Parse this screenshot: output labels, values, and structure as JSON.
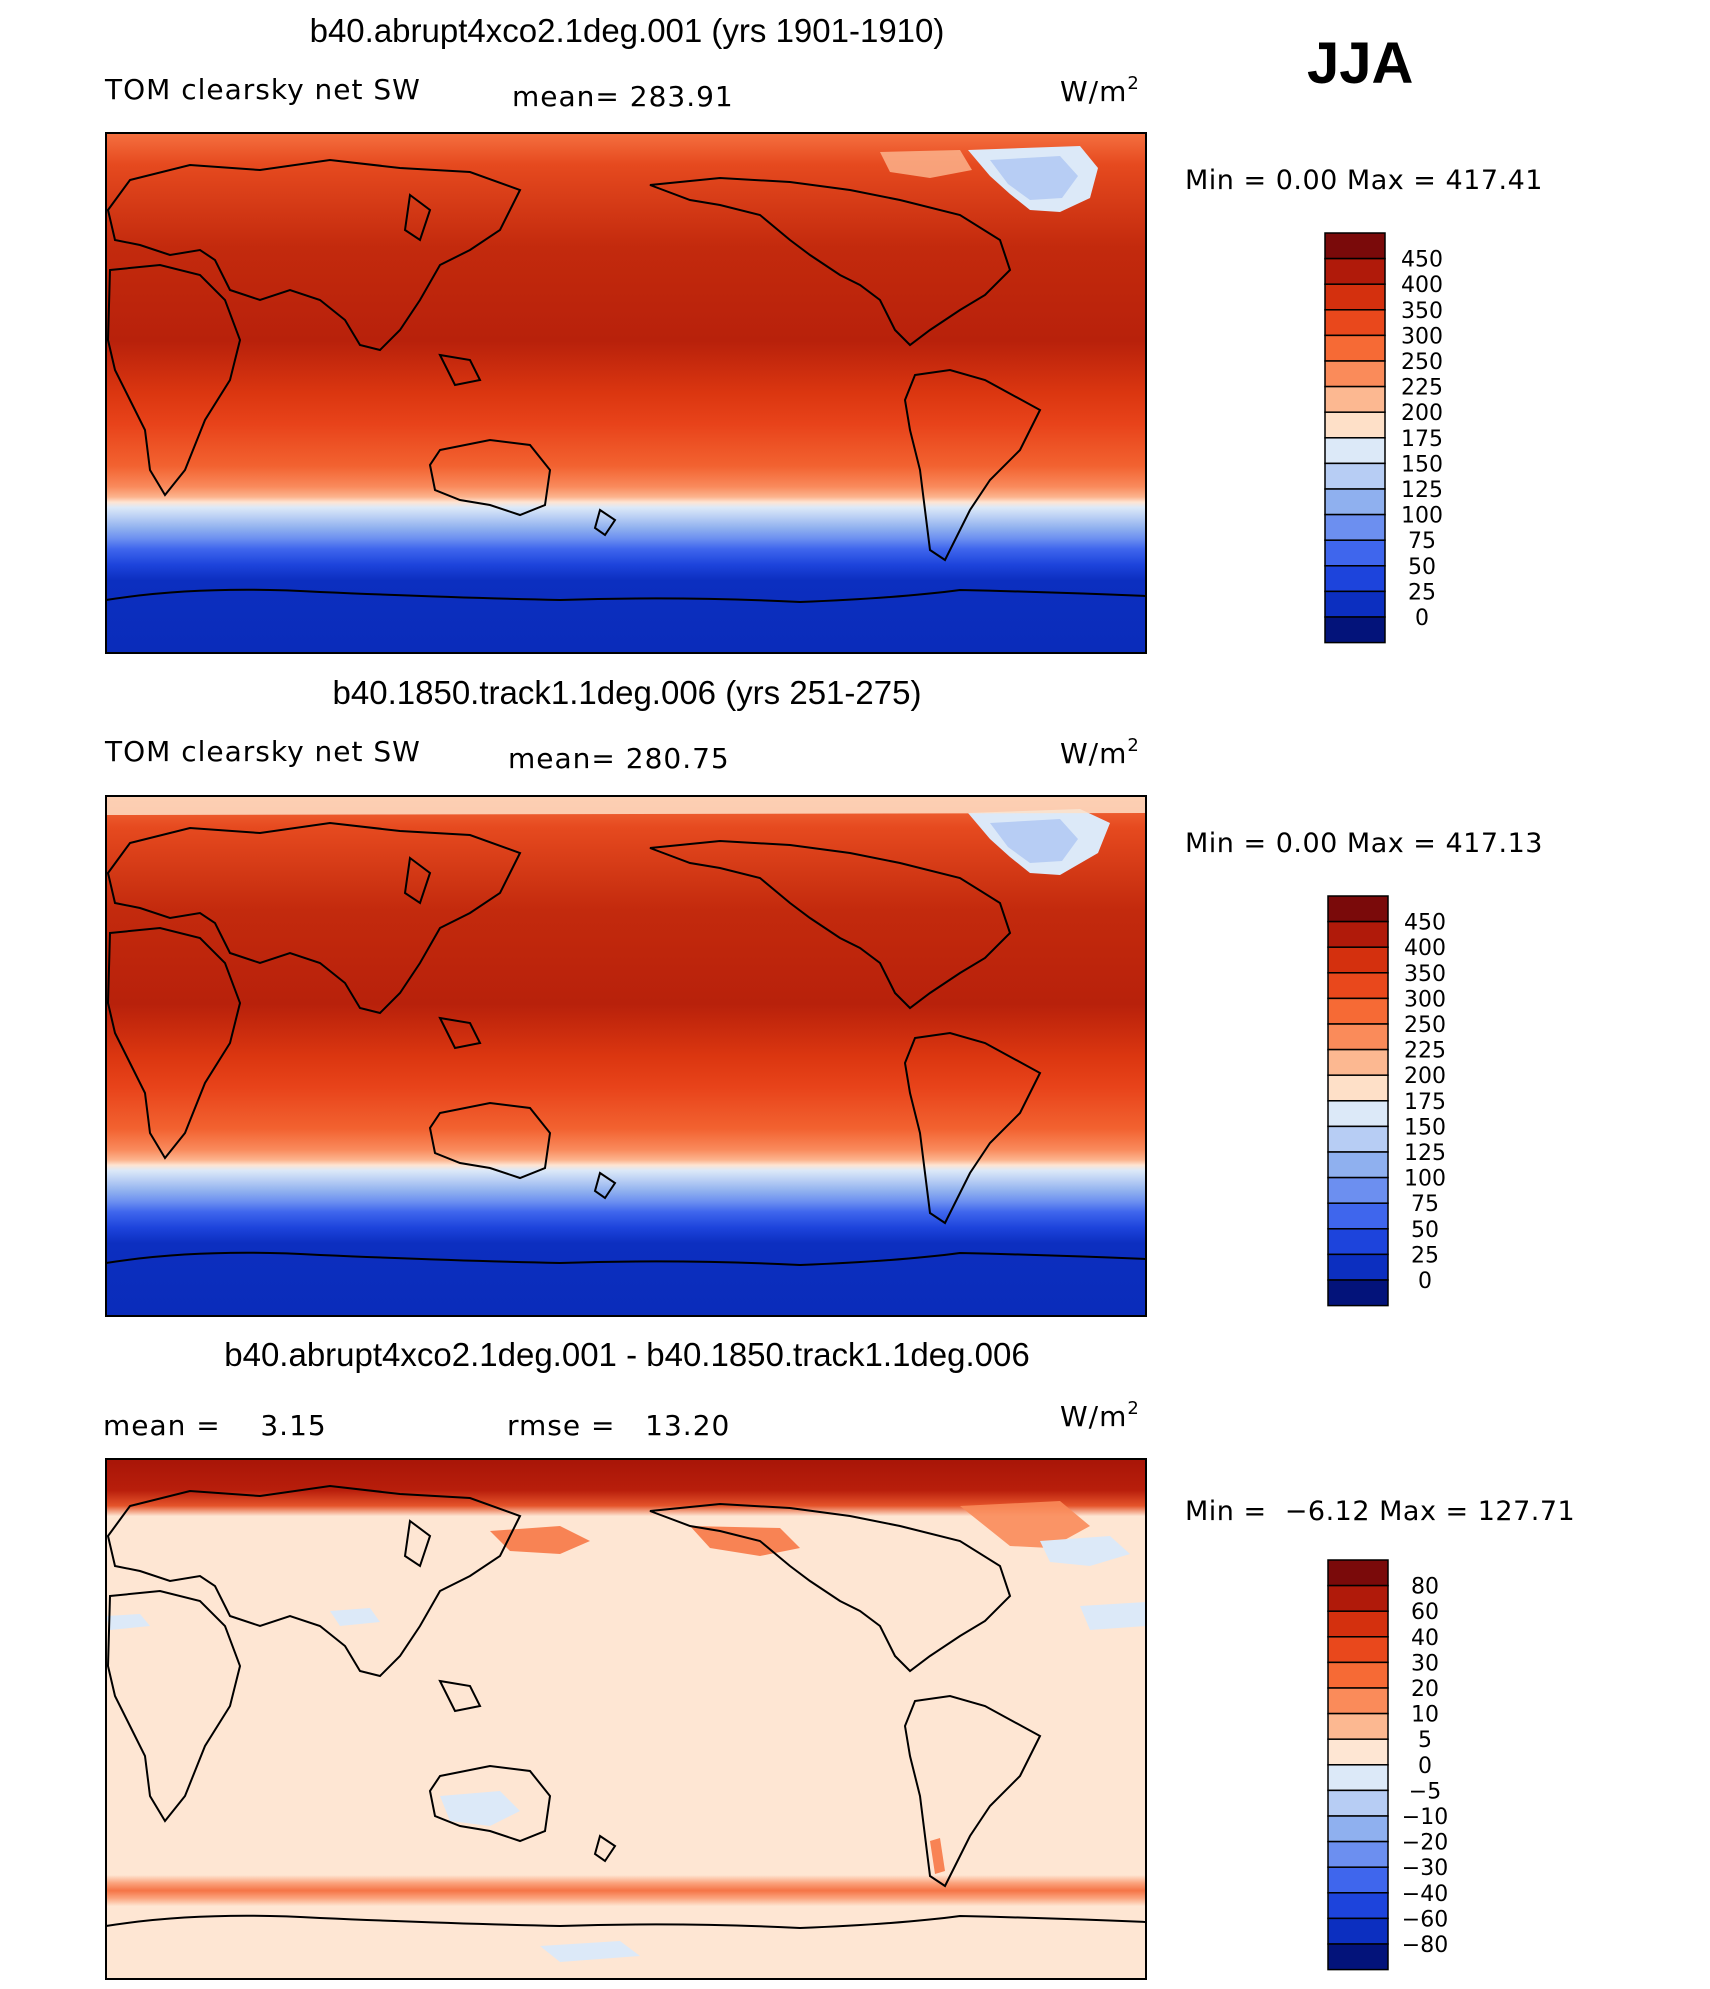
{
  "season": "JJA",
  "units": "W/m",
  "units_sup": "2",
  "panels": [
    {
      "title": "b40.abrupt4xco2.1deg.001 (yrs 1901-1910)",
      "left_label": "TOM clearsky net SW",
      "stat_label": "mean= 283.91",
      "minmax": "Min =    0.00 Max = 417.41",
      "colorbar": {
        "labels": [
          "450",
          "400",
          "350",
          "300",
          "250",
          "225",
          "200",
          "175",
          "150",
          "125",
          "100",
          "75",
          "50",
          "25",
          "0"
        ],
        "colors": [
          "#7a0a0a",
          "#b01a0a",
          "#d4300e",
          "#e9481c",
          "#f66a35",
          "#fa8b5a",
          "#fcb891",
          "#fee0c8",
          "#dce9f8",
          "#b7cdf4",
          "#8fb0ef",
          "#6c8ff0",
          "#3f66ed",
          "#1d44dc",
          "#0c2fc0",
          "#03137a"
        ]
      }
    },
    {
      "title": "b40.1850.track1.1deg.006 (yrs 251-275)",
      "left_label": "TOM clearsky net SW",
      "stat_label": "mean= 280.75",
      "minmax": "Min =    0.00 Max = 417.13",
      "colorbar": {
        "labels": [
          "450",
          "400",
          "350",
          "300",
          "250",
          "225",
          "200",
          "175",
          "150",
          "125",
          "100",
          "75",
          "50",
          "25",
          "0"
        ],
        "colors": [
          "#7a0a0a",
          "#b01a0a",
          "#d4300e",
          "#e9481c",
          "#f66a35",
          "#fa8b5a",
          "#fcb891",
          "#fee0c8",
          "#dce9f8",
          "#b7cdf4",
          "#8fb0ef",
          "#6c8ff0",
          "#3f66ed",
          "#1d44dc",
          "#0c2fc0",
          "#03137a"
        ]
      }
    },
    {
      "title": "b40.abrupt4xco2.1deg.001 - b40.1850.track1.1deg.006",
      "left_label": "mean =    3.15",
      "stat_label": "rmse =   13.20",
      "minmax": "Min =  −6.12 Max = 127.71",
      "colorbar": {
        "labels": [
          "80",
          "60",
          "40",
          "30",
          "20",
          "10",
          "5",
          "0",
          "−5",
          "−10",
          "−20",
          "−30",
          "−40",
          "−60",
          "−80"
        ],
        "colors": [
          "#7a0a0a",
          "#b01a0a",
          "#d4300e",
          "#e9481c",
          "#f66a35",
          "#fa8b5a",
          "#fcb891",
          "#fee6d3",
          "#dce9f8",
          "#b7cdf4",
          "#8fb0ef",
          "#6c8ff0",
          "#3f66ed",
          "#1d44dc",
          "#0c2fc0",
          "#03137a"
        ]
      }
    }
  ]
}
